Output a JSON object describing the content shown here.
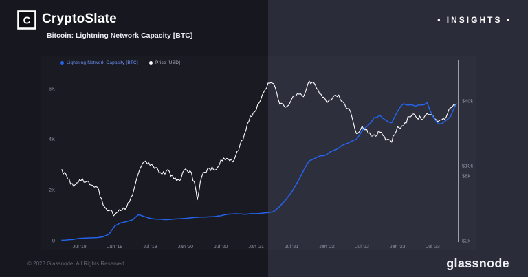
{
  "header": {
    "brand": "CryptoSlate",
    "logo_glyph": "C",
    "chart_title": "Bitcoin: Lightning Network Capacity [BTC]",
    "insights_label": "• INSIGHTS •"
  },
  "footer": {
    "copyright": "© 2023 Glassnode. All Rights Reserved.",
    "brand": "glassnode"
  },
  "colors": {
    "bg_left": "#16171f",
    "bg_right": "#2a2c39",
    "capacity_line": "#2563eb",
    "price_line": "#ffffff",
    "axis_text": "#8d90a0"
  },
  "chart_data": {
    "type": "line",
    "title": "Bitcoin: Lightning Network Capacity [BTC]",
    "legend_position": "top-left",
    "grid": false,
    "months_start": "Apr 2018",
    "months_end": "Nov 2023",
    "x_ticks": [
      {
        "label": "Jul '18",
        "month_index": 3
      },
      {
        "label": "Jan '19",
        "month_index": 9
      },
      {
        "label": "Jul '19",
        "month_index": 15
      },
      {
        "label": "Jan '20",
        "month_index": 21
      },
      {
        "label": "Jul '20",
        "month_index": 27
      },
      {
        "label": "Jan '21",
        "month_index": 33
      },
      {
        "label": "Jul '21",
        "month_index": 39
      },
      {
        "label": "Jan '22",
        "month_index": 45
      },
      {
        "label": "Jul '22",
        "month_index": 51
      },
      {
        "label": "Jan '23",
        "month_index": 57
      },
      {
        "label": "Jul '23",
        "month_index": 63
      }
    ],
    "left_axis": {
      "scale": "linear",
      "range": [
        0,
        7000
      ],
      "ticks": [
        {
          "label": "0",
          "value": 0
        },
        {
          "label": "2K",
          "value": 2000
        },
        {
          "label": "4K",
          "value": 4000
        },
        {
          "label": "6K",
          "value": 6000
        }
      ]
    },
    "right_axis": {
      "scale": "log",
      "range": [
        2000,
        90000
      ],
      "ticks": [
        {
          "label": "$40k",
          "value": 40000
        },
        {
          "label": "$10k",
          "value": 10000
        },
        {
          "label": "$8k",
          "value": 8000
        },
        {
          "label": "$2k",
          "value": 2000
        }
      ]
    },
    "series": [
      {
        "name": "Price [USD]",
        "axis": "right",
        "color": "#ffffff",
        "values": [
          9200,
          7500,
          6400,
          7400,
          7000,
          6600,
          6300,
          4300,
          3800,
          3500,
          3800,
          4100,
          5300,
          8500,
          10800,
          10000,
          9600,
          8300,
          9200,
          7500,
          7200,
          9300,
          8600,
          4800,
          8600,
          9500,
          9100,
          11300,
          11700,
          10800,
          13800,
          19700,
          29000,
          33100,
          45100,
          58800,
          57700,
          37300,
          35000,
          41500,
          47100,
          43800,
          61300,
          57000,
          46200,
          38500,
          43200,
          45500,
          37600,
          31800,
          19900,
          23300,
          20000,
          19400,
          20500,
          17200,
          16500,
          23100,
          23500,
          28500,
          29200,
          27200,
          30500,
          29200,
          26000,
          27000,
          34500,
          37500
        ]
      },
      {
        "name": "Lightning Network Capacity [BTC]",
        "axis": "left",
        "color": "#2563eb",
        "values": [
          15,
          30,
          50,
          90,
          100,
          110,
          120,
          150,
          250,
          580,
          700,
          750,
          820,
          1020,
          950,
          880,
          850,
          840,
          830,
          850,
          860,
          880,
          900,
          920,
          930,
          940,
          950,
          980,
          1030,
          1050,
          1050,
          1040,
          1060,
          1060,
          1080,
          1100,
          1150,
          1350,
          1600,
          1900,
          2300,
          2750,
          3150,
          3250,
          3350,
          3400,
          3550,
          3650,
          3800,
          3900,
          4000,
          4350,
          4550,
          4850,
          4950,
          4750,
          4650,
          5100,
          5400,
          5350,
          5300,
          5350,
          5450,
          4900,
          4600,
          4700,
          4900,
          5400
        ]
      }
    ]
  }
}
